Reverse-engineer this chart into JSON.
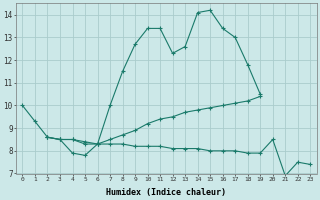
{
  "background_color": "#cce8e8",
  "grid_color": "#aacccc",
  "line_color": "#1a7a6a",
  "xlabel": "Humidex (Indice chaleur)",
  "xlim": [
    -0.5,
    23.5
  ],
  "ylim": [
    7,
    14.5
  ],
  "yticks": [
    7,
    8,
    9,
    10,
    11,
    12,
    13,
    14
  ],
  "xticks": [
    0,
    1,
    2,
    3,
    4,
    5,
    6,
    7,
    8,
    9,
    10,
    11,
    12,
    13,
    14,
    15,
    16,
    17,
    18,
    19,
    20,
    21,
    22,
    23
  ],
  "xtick_labels": [
    "0",
    "1",
    "2",
    "3",
    "4",
    "5",
    "6",
    "7",
    "8",
    "9",
    "10",
    "11",
    "12",
    "13",
    "14",
    "15",
    "16",
    "17",
    "18",
    "19",
    "20",
    "21",
    "22",
    "23"
  ],
  "series": [
    {
      "x": [
        0,
        1,
        2,
        3,
        4,
        5,
        6,
        7,
        8,
        9,
        10,
        11,
        12,
        13,
        14,
        15,
        16,
        17,
        18,
        19
      ],
      "y": [
        10.0,
        9.3,
        8.6,
        8.5,
        7.9,
        7.8,
        8.3,
        10.0,
        11.5,
        12.7,
        13.4,
        13.4,
        12.3,
        12.6,
        14.1,
        14.2,
        13.4,
        13.0,
        11.8,
        10.5
      ]
    },
    {
      "x": [
        2,
        3,
        4,
        5,
        6,
        7,
        8,
        9,
        10,
        11,
        12,
        13,
        14,
        15,
        16,
        17,
        18,
        19
      ],
      "y": [
        8.6,
        8.5,
        8.5,
        8.4,
        8.3,
        8.5,
        8.7,
        8.9,
        9.2,
        9.4,
        9.5,
        9.7,
        9.8,
        9.9,
        10.0,
        10.1,
        10.2,
        10.4
      ]
    },
    {
      "x": [
        2,
        3,
        4,
        5,
        6,
        7,
        8,
        9,
        10,
        11,
        12,
        13,
        14,
        15,
        16,
        17,
        18,
        19,
        20,
        21,
        22,
        23
      ],
      "y": [
        8.6,
        8.5,
        8.5,
        8.3,
        8.3,
        8.3,
        8.3,
        8.2,
        8.2,
        8.2,
        8.1,
        8.1,
        8.1,
        8.0,
        8.0,
        8.0,
        7.9,
        7.9,
        8.5,
        6.9,
        7.5,
        7.4
      ]
    }
  ]
}
